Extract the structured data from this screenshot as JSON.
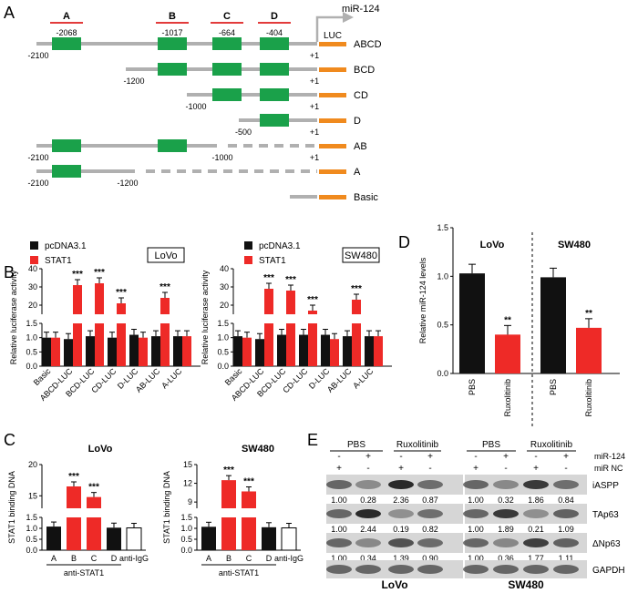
{
  "colors": {
    "green": "#1aa14a",
    "orange": "#f08a1e",
    "gray": "#b0b0b0",
    "red": "#ee2a27",
    "black": "#111111",
    "lineRed": "#e23b3b",
    "blotDark": "#2a2a2a",
    "blotBg": "#d6d6d6"
  },
  "panelA": {
    "panel_label": "A",
    "mir_label": "miR-124",
    "luc_label": "LUC",
    "sites": [
      {
        "label": "A",
        "pos": "-2068"
      },
      {
        "label": "B",
        "pos": "-1017"
      },
      {
        "label": "C",
        "pos": "-664"
      },
      {
        "label": "D",
        "pos": "-404"
      }
    ],
    "constructs": [
      {
        "name": "ABCD",
        "start": "-2100",
        "plus": "+1",
        "gap_label": ""
      },
      {
        "name": "BCD",
        "start": "-1200",
        "plus": "+1",
        "gap_label": ""
      },
      {
        "name": "CD",
        "start": "-1000",
        "plus": "+1",
        "gap_label": ""
      },
      {
        "name": "D",
        "start": "-500",
        "plus": "+1",
        "gap_label": ""
      },
      {
        "name": "AB",
        "start": "-2100",
        "plus": "+1",
        "gap_label": "-1000"
      },
      {
        "name": "A",
        "start": "-2100",
        "plus": "",
        "gap_label": "-1200"
      },
      {
        "name": "Basic",
        "start": "",
        "plus": "",
        "gap_label": ""
      }
    ]
  },
  "chart_data": [
    {
      "type": "bar",
      "panel": "B",
      "title": "LoVo",
      "ylabel": "Relative luciferase activity",
      "break_axis": true,
      "ylim_lower": [
        0,
        1.5
      ],
      "ylim_upper": [
        15,
        40
      ],
      "yticks_lower": [
        "0.0",
        "0.5",
        "1.0",
        "1.5"
      ],
      "yticks_upper": [
        "20",
        "30",
        "40"
      ],
      "categories": [
        "Basic",
        "ABCD-LUC",
        "BCD-LUC",
        "CD-LUC",
        "D-LUC",
        "AB-LUC",
        "A-LUC"
      ],
      "series": [
        {
          "name": "pcDNA3.1",
          "values": [
            1.0,
            0.95,
            1.05,
            1.0,
            1.1,
            1.05,
            1.05
          ]
        },
        {
          "name": "STAT1",
          "values": [
            1.0,
            31,
            32,
            21,
            1.0,
            24,
            1.05
          ]
        }
      ],
      "sig": [
        "",
        "***",
        "***",
        "***",
        "",
        "***",
        ""
      ]
    },
    {
      "type": "bar",
      "panel": "B",
      "title": "SW480",
      "ylabel": "Relative luciferase activity",
      "break_axis": true,
      "ylim_lower": [
        0,
        1.5
      ],
      "ylim_upper": [
        15,
        40
      ],
      "yticks_lower": [
        "0.0",
        "0.5",
        "1.0",
        "1.5"
      ],
      "yticks_upper": [
        "20",
        "30",
        "40"
      ],
      "categories": [
        "Basic",
        "ABCD-LUC",
        "BCD-LUC",
        "CD-LUC",
        "D-LUC",
        "AB-LUC",
        "A-LUC"
      ],
      "series": [
        {
          "name": "pcDNA3.1",
          "values": [
            1.05,
            0.95,
            1.1,
            1.1,
            1.1,
            1.05,
            1.05
          ]
        },
        {
          "name": "STAT1",
          "values": [
            1.0,
            29,
            28,
            17,
            0.95,
            23,
            1.05
          ]
        }
      ],
      "sig": [
        "",
        "***",
        "***",
        "***",
        "",
        "***",
        ""
      ]
    },
    {
      "type": "bar",
      "panel": "C",
      "title": "LoVo",
      "ylabel": "STAT1 binding DNA",
      "break_axis": true,
      "ylim_lower": [
        0,
        1.5
      ],
      "ylim_upper": [
        13,
        20
      ],
      "yticks_lower": [
        "0.0",
        "0.5",
        "1.0",
        "1.5"
      ],
      "yticks_upper": [
        "15",
        "20"
      ],
      "categories": [
        "A",
        "B",
        "C",
        "D",
        "anti-IgG"
      ],
      "group_label": "anti-STAT1",
      "values": [
        1.08,
        16.5,
        14.8,
        1.03,
        1.02
      ],
      "colors": [
        "black",
        "red",
        "red",
        "black",
        "white"
      ],
      "sig": [
        "",
        "***",
        "***",
        "",
        ""
      ]
    },
    {
      "type": "bar",
      "panel": "C",
      "title": "SW480",
      "ylabel": "STAT1 binding DNA",
      "break_axis": true,
      "ylim_lower": [
        0,
        1.5
      ],
      "ylim_upper": [
        8,
        15
      ],
      "yticks_lower": [
        "0.0",
        "0.5",
        "1.0",
        "1.5"
      ],
      "yticks_upper": [
        "9",
        "12",
        "15"
      ],
      "categories": [
        "A",
        "B",
        "C",
        "D",
        "anti-IgG"
      ],
      "group_label": "anti-STAT1",
      "values": [
        1.07,
        12.5,
        10.7,
        1.05,
        1.02
      ],
      "colors": [
        "black",
        "red",
        "red",
        "black",
        "white"
      ],
      "sig": [
        "",
        "***",
        "***",
        "",
        ""
      ]
    },
    {
      "type": "bar",
      "panel": "D",
      "title_left": "LoVo",
      "title_right": "SW480",
      "ylabel": "Relative miR-124 levels",
      "ylim": [
        0,
        1.5
      ],
      "yticks": [
        "0.0",
        "0.5",
        "1.0",
        "1.5"
      ],
      "categories": [
        "PBS",
        "Ruxolitinib",
        "PBS",
        "Ruxolitinib"
      ],
      "values": [
        1.03,
        0.4,
        0.99,
        0.47
      ],
      "colors": [
        "black",
        "red",
        "black",
        "red"
      ],
      "sig": [
        "",
        "**",
        "",
        "**"
      ]
    }
  ],
  "panelB_label": "B",
  "panelC_label": "C",
  "panelD_label": "D",
  "panelE": {
    "panel_label": "E",
    "groups": [
      "PBS",
      "Ruxolitinib",
      "PBS",
      "Ruxolitinib"
    ],
    "row_mir124": "miR-124",
    "row_mirnc": "miR NC",
    "mir124_signs": [
      "-",
      "+",
      "-",
      "+",
      "-",
      "+",
      "-",
      "+"
    ],
    "mirnc_signs": [
      "+",
      "-",
      "+",
      "-",
      "+",
      "-",
      "+",
      "-"
    ],
    "proteins": [
      {
        "name": "iASPP",
        "values": [
          "1.00",
          "0.28",
          "2.36",
          "0.87",
          "1.00",
          "0.32",
          "1.86",
          "0.84"
        ]
      },
      {
        "name": "TAp63",
        "values": [
          "1.00",
          "2.44",
          "0.19",
          "0.82",
          "1.00",
          "1.89",
          "0.21",
          "1.09"
        ]
      },
      {
        "name": "ΔNp63",
        "values": [
          "1.00",
          "0.34",
          "1.39",
          "0.90",
          "1.00",
          "0.36",
          "1.77",
          "1.11"
        ]
      },
      {
        "name": "GAPDH",
        "values": []
      }
    ],
    "cell_lines": [
      "LoVo",
      "SW480"
    ]
  }
}
